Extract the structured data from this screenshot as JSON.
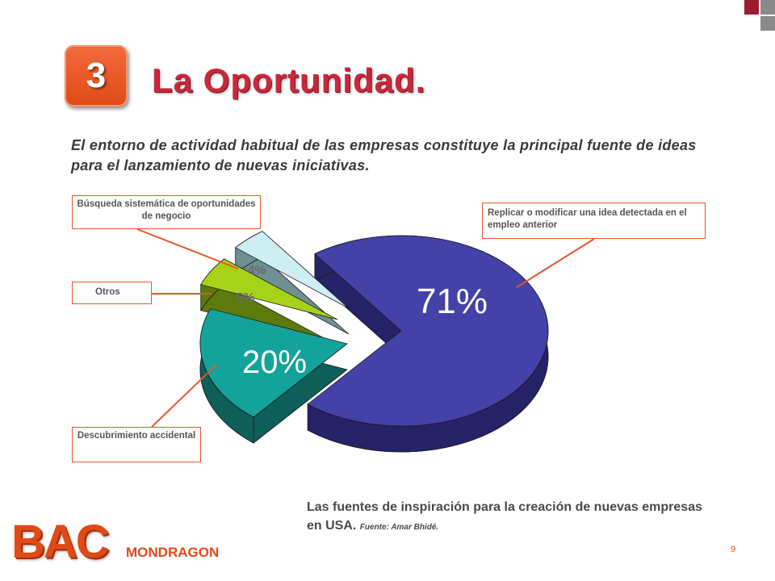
{
  "colors": {
    "accent": "#e5572a",
    "title": "#c9283c",
    "corner_dark": "#9b1c2e",
    "corner_gray": "#8a8a8a"
  },
  "header": {
    "badge": "3",
    "title": "La Oportunidad."
  },
  "intro": "El entorno de actividad habitual de las empresas constituye la principal fuente de ideas para el lanzamiento de nuevas iniciativas.",
  "callouts": {
    "busqueda": "Búsqueda sistemática de oportunidades de negocio",
    "replicar": "Replicar o modificar una idea detectada en el empleo anterior",
    "otros": "Otros",
    "descubrimiento": "Descubrimiento accidental"
  },
  "chart_data": {
    "type": "pie",
    "style": "3d-exploded",
    "slices": [
      {
        "label": "Replicar o modificar una idea detectada en el empleo anterior",
        "value": 71,
        "value_label": "71%",
        "color": "#4441a8",
        "side_color": "#262268"
      },
      {
        "label": "Descubrimiento accidental",
        "value": 20,
        "value_label": "20%",
        "color": "#14a39a",
        "side_color": "#0e5e59"
      },
      {
        "label": "Otros",
        "value": 5,
        "value_label": "5%",
        "color": "#a6d31a",
        "side_color": "#5d7a0d"
      },
      {
        "label": "Búsqueda sistemática de oportunidades de negocio",
        "value": 4,
        "value_label": "4%",
        "color": "#cdeef2",
        "side_color": "#6f8f94"
      }
    ]
  },
  "caption": {
    "main": "Las fuentes de inspiración para la creación de nuevas empresas en USA",
    "dot": ". ",
    "source": "Fuente: Amar Bhidé."
  },
  "footer": {
    "logo": "BAC",
    "logo_sub": "MONDRAGON",
    "page_number": "9"
  }
}
